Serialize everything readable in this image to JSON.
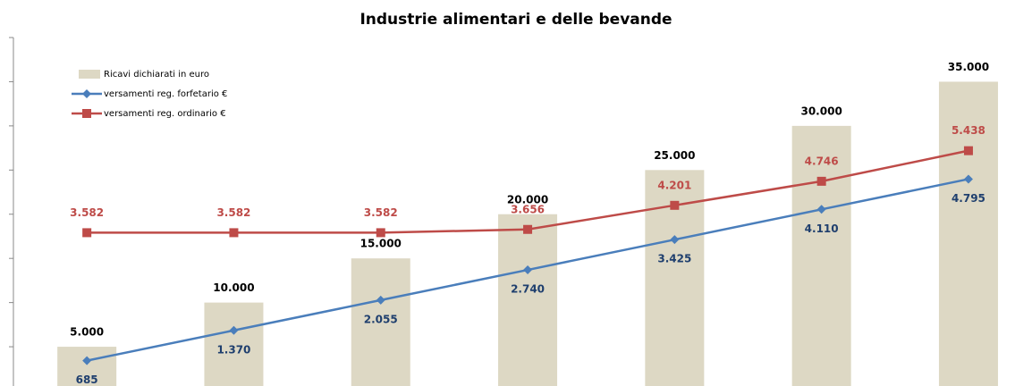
{
  "chart_data": {
    "type": "bar",
    "title": "Industrie alimentari e delle bevande",
    "ylim": [
      0,
      40000
    ],
    "yticks": [
      0,
      5000,
      10000,
      15000,
      20000,
      25000,
      30000,
      35000,
      40000
    ],
    "y2lim": [
      0,
      8000
    ],
    "legend": "upper left",
    "series": [
      {
        "name": "Ricavi dichiarati in euro",
        "type": "bar",
        "color": "#ddd8c4",
        "values": [
          5000,
          10000,
          15000,
          20000,
          25000,
          30000,
          35000
        ],
        "value_labels": [
          "5.000",
          "10.000",
          "15.000",
          "20.000",
          "25.000",
          "30.000",
          "35.000"
        ]
      },
      {
        "name": "versamenti reg. forfetario €",
        "type": "line",
        "axis": "y2",
        "color": "#4a7ebb",
        "label_color": "#1f3f6e",
        "values": [
          685,
          1370,
          2055,
          2740,
          3425,
          4110,
          4795
        ],
        "value_labels": [
          "685",
          "1.370",
          "2.055",
          "2.740",
          "3.425",
          "4.110",
          "4.795"
        ]
      },
      {
        "name": "versamenti reg. ordinario €",
        "type": "line",
        "axis": "y2",
        "color": "#be4b48",
        "label_color": "#be4b48",
        "values": [
          3582,
          3582,
          3582,
          3656,
          4201,
          4746,
          5438
        ],
        "value_labels": [
          "3.582",
          "3.582",
          "3.582",
          "3.656",
          "4.201",
          "4.746",
          "5.438"
        ]
      }
    ]
  }
}
